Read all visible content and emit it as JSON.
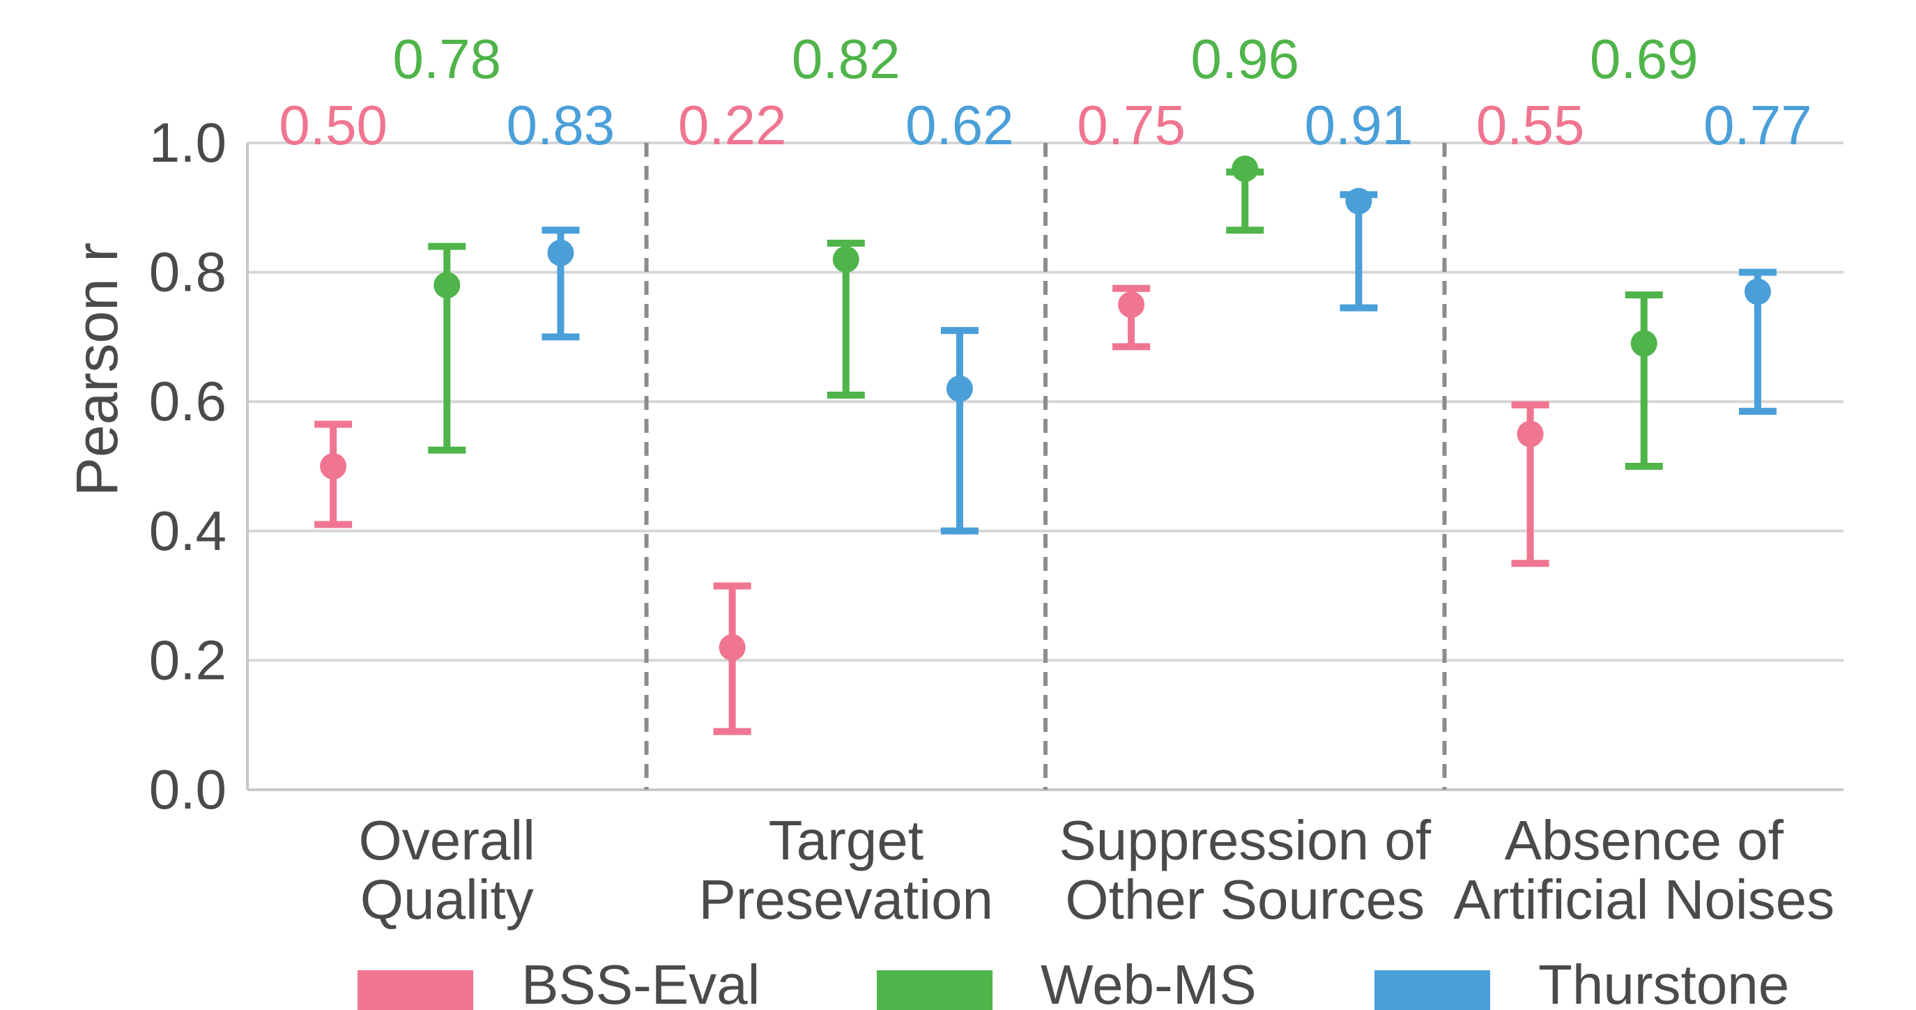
{
  "chart_data": {
    "type": "scatter",
    "ylabel": "Pearson r",
    "xlabel": "",
    "ylim": [
      0.0,
      1.0
    ],
    "yticks": [
      "0.0",
      "0.2",
      "0.4",
      "0.6",
      "0.8",
      "1.0"
    ],
    "grid": "horizontal",
    "legend_placement": "bottom",
    "categories": [
      {
        "lines": [
          "Overall",
          "Quality"
        ]
      },
      {
        "lines": [
          "Target",
          "Presevation"
        ]
      },
      {
        "lines": [
          "Suppression of",
          "Other Sources"
        ]
      },
      {
        "lines": [
          "Absence of",
          "Artificial Noises"
        ]
      }
    ],
    "series": [
      {
        "name": "BSS-Eval",
        "color": "#f07590",
        "values": [
          0.5,
          0.22,
          0.75,
          0.55
        ],
        "ci_low": [
          0.41,
          0.09,
          0.685,
          0.35
        ],
        "ci_high": [
          0.565,
          0.315,
          0.775,
          0.595
        ]
      },
      {
        "name": "Web-MS",
        "color": "#4fb44a",
        "values": [
          0.78,
          0.82,
          0.96,
          0.69
        ],
        "ci_low": [
          0.525,
          0.61,
          0.865,
          0.5
        ],
        "ci_high": [
          0.84,
          0.845,
          0.955,
          0.765
        ]
      },
      {
        "name": "Thurstone",
        "color": "#4a9fd9",
        "values": [
          0.83,
          0.62,
          0.91,
          0.77
        ],
        "ci_low": [
          0.7,
          0.4,
          0.745,
          0.585
        ],
        "ci_high": [
          0.865,
          0.71,
          0.92,
          0.8
        ]
      }
    ],
    "annotations": [
      {
        "category": 0,
        "series": 1,
        "text": "0.78"
      },
      {
        "category": 0,
        "series": 0,
        "text": "0.50"
      },
      {
        "category": 0,
        "series": 2,
        "text": "0.83"
      },
      {
        "category": 1,
        "series": 1,
        "text": "0.82"
      },
      {
        "category": 1,
        "series": 0,
        "text": "0.22"
      },
      {
        "category": 1,
        "series": 2,
        "text": "0.62"
      },
      {
        "category": 2,
        "series": 1,
        "text": "0.96"
      },
      {
        "category": 2,
        "series": 0,
        "text": "0.75"
      },
      {
        "category": 2,
        "series": 2,
        "text": "0.91"
      },
      {
        "category": 3,
        "series": 1,
        "text": "0.69"
      },
      {
        "category": 3,
        "series": 0,
        "text": "0.55"
      },
      {
        "category": 3,
        "series": 2,
        "text": "0.77"
      }
    ]
  }
}
